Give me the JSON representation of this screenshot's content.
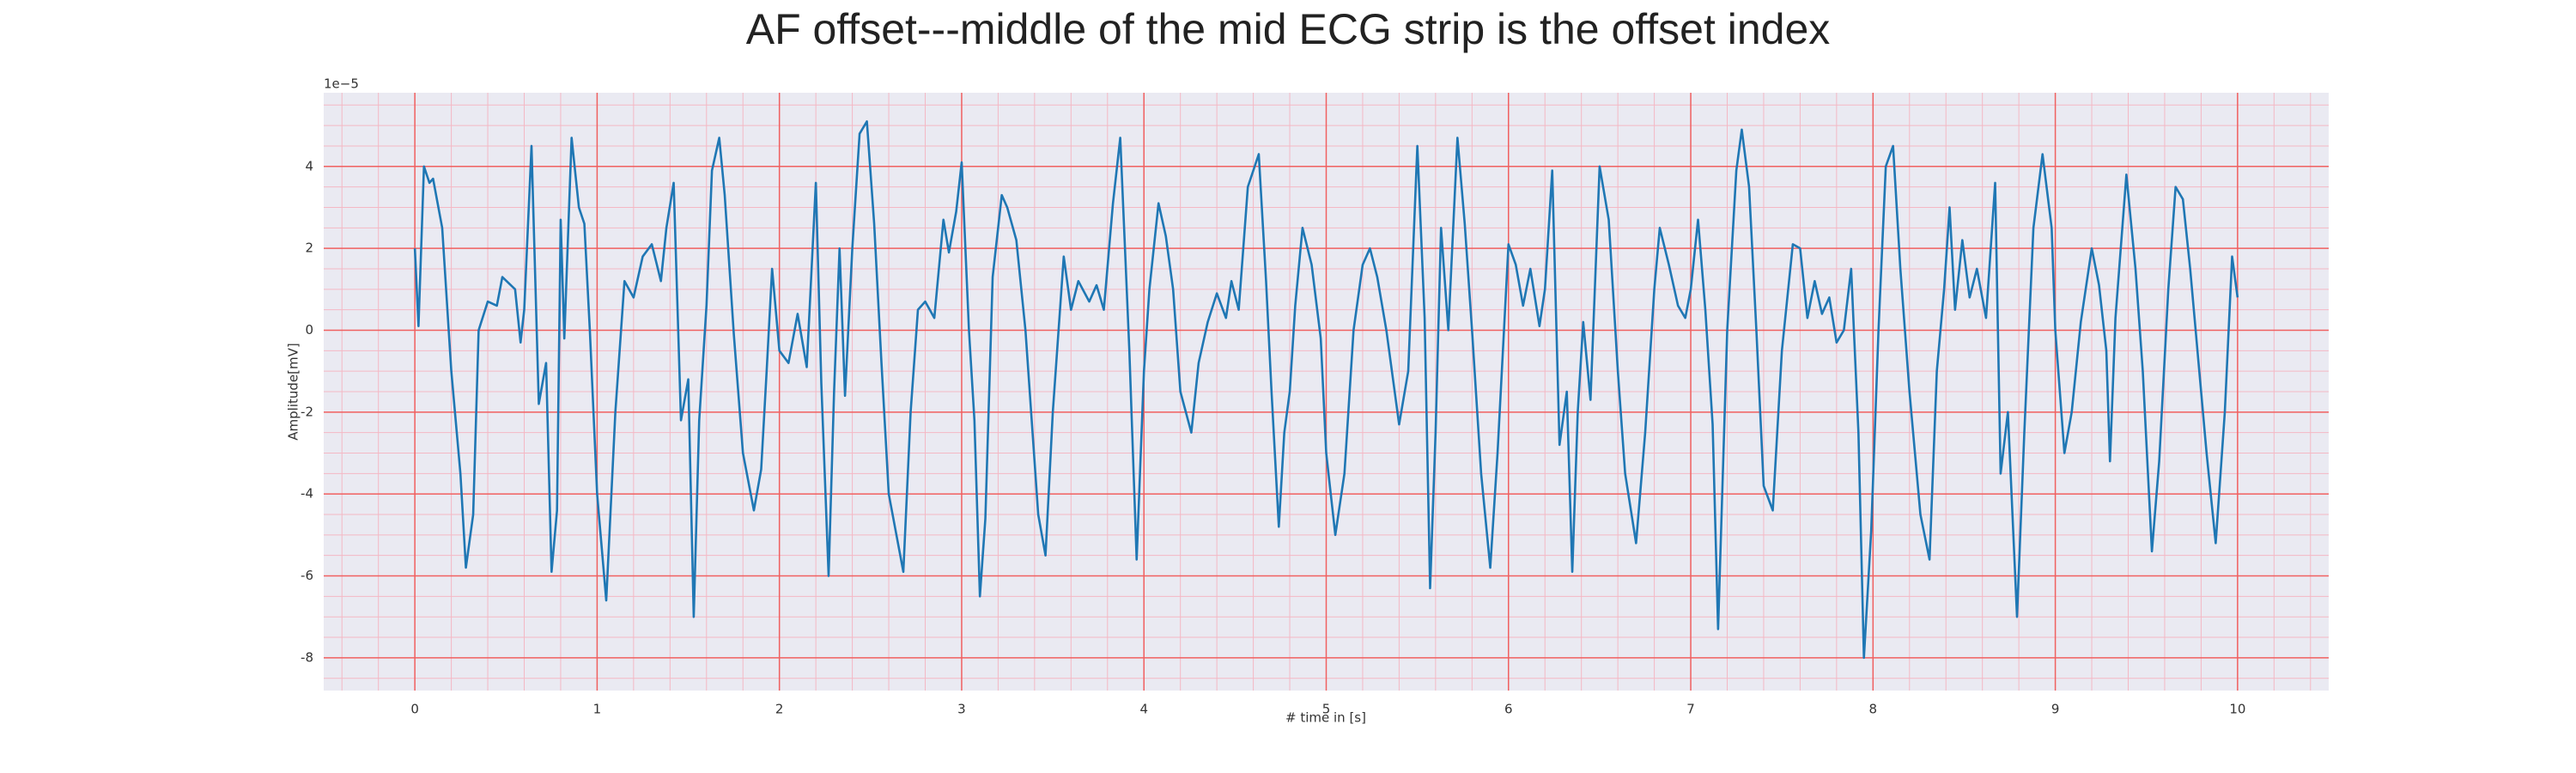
{
  "chart_data": {
    "type": "line",
    "title": "AF offset---middle of the mid ECG strip is the offset index",
    "xlabel": "# time in [s]",
    "ylabel": "Amplitude[mV]",
    "y_offset_label": "1e−5",
    "xlim": [
      -0.5,
      10.5
    ],
    "ylim": [
      -8.8,
      5.8
    ],
    "xticks": [
      0,
      1,
      2,
      3,
      4,
      5,
      6,
      7,
      8,
      9,
      10
    ],
    "yticks": [
      -8,
      -6,
      -4,
      -2,
      0,
      2,
      4
    ],
    "grid": true,
    "minor_grid": true,
    "series": [
      {
        "color": "#1f77b4",
        "x": [
          0,
          0.02,
          0.05,
          0.08,
          0.1,
          0.15,
          0.2,
          0.25,
          0.28,
          0.32,
          0.35,
          0.4,
          0.45,
          0.48,
          0.55,
          0.58,
          0.6,
          0.64,
          0.68,
          0.72,
          0.75,
          0.78,
          0.8,
          0.82,
          0.86,
          0.9,
          0.93,
          0.96,
          1.0,
          1.05,
          1.1,
          1.15,
          1.2,
          1.25,
          1.3,
          1.35,
          1.38,
          1.42,
          1.46,
          1.5,
          1.53,
          1.56,
          1.6,
          1.63,
          1.67,
          1.7,
          1.75,
          1.8,
          1.86,
          1.9,
          1.93,
          1.96,
          2.0,
          2.05,
          2.1,
          2.15,
          2.2,
          2.23,
          2.27,
          2.3,
          2.33,
          2.36,
          2.4,
          2.44,
          2.48,
          2.52,
          2.56,
          2.6,
          2.68,
          2.72,
          2.76,
          2.8,
          2.85,
          2.9,
          2.93,
          2.97,
          3.0,
          3.04,
          3.07,
          3.1,
          3.13,
          3.17,
          3.22,
          3.25,
          3.3,
          3.35,
          3.42,
          3.46,
          3.5,
          3.56,
          3.6,
          3.64,
          3.7,
          3.74,
          3.78,
          3.83,
          3.87,
          3.92,
          3.96,
          4.0,
          4.03,
          4.08,
          4.12,
          4.16,
          4.2,
          4.26,
          4.3,
          4.35,
          4.4,
          4.45,
          4.48,
          4.52,
          4.57,
          4.63,
          4.67,
          4.7,
          4.74,
          4.77,
          4.8,
          4.83,
          4.87,
          4.92,
          4.97,
          5.0,
          5.05,
          5.1,
          5.15,
          5.2,
          5.24,
          5.28,
          5.33,
          5.4,
          5.45,
          5.5,
          5.54,
          5.57,
          5.6,
          5.63,
          5.67,
          5.72,
          5.76,
          5.8,
          5.85,
          5.9,
          5.94,
          6.0,
          6.04,
          6.08,
          6.12,
          6.17,
          6.2,
          6.24,
          6.28,
          6.32,
          6.35,
          6.38,
          6.41,
          6.45,
          6.5,
          6.55,
          6.6,
          6.64,
          6.7,
          6.75,
          6.8,
          6.83,
          6.88,
          6.93,
          6.97,
          7.0,
          7.04,
          7.08,
          7.12,
          7.15,
          7.2,
          7.25,
          7.28,
          7.32,
          7.36,
          7.4,
          7.45,
          7.5,
          7.56,
          7.6,
          7.64,
          7.68,
          7.72,
          7.76,
          7.8,
          7.84,
          7.88,
          7.92,
          7.95,
          7.99,
          8.03,
          8.07,
          8.11,
          8.15,
          8.2,
          8.26,
          8.31,
          8.35,
          8.39,
          8.42,
          8.45,
          8.49,
          8.53,
          8.57,
          8.62,
          8.67,
          8.7,
          8.74,
          8.79,
          8.83,
          8.88,
          8.93,
          8.98,
          9.0,
          9.05,
          9.09,
          9.14,
          9.2,
          9.24,
          9.28,
          9.3,
          9.33,
          9.39,
          9.44,
          9.48,
          9.53,
          9.57,
          9.62,
          9.66,
          9.7,
          9.74,
          9.78,
          9.83,
          9.88,
          9.93,
          9.97,
          10.0
        ],
        "values": [
          2.0,
          0.1,
          4.0,
          3.6,
          3.7,
          2.5,
          -1,
          -3.5,
          -5.8,
          -4.5,
          0,
          0.7,
          0.6,
          1.3,
          1.0,
          -0.3,
          0.5,
          4.5,
          -1.8,
          -0.8,
          -5.9,
          -4.4,
          2.7,
          -0.2,
          4.7,
          3.0,
          2.6,
          0,
          -4,
          -6.6,
          -2,
          1.2,
          0.8,
          1.8,
          2.1,
          1.2,
          2.5,
          3.6,
          -2.2,
          -1.2,
          -7.0,
          -2.2,
          0.6,
          3.9,
          4.7,
          3.3,
          -0.1,
          -3,
          -4.4,
          -3.4,
          -1,
          1.5,
          -0.5,
          -0.8,
          0.4,
          -0.9,
          3.6,
          -1.3,
          -6.0,
          -1.5,
          2.0,
          -1.6,
          2.0,
          4.8,
          5.1,
          2.6,
          -0.8,
          -4,
          -5.9,
          -2,
          0.5,
          0.7,
          0.3,
          2.7,
          1.9,
          2.9,
          4.1,
          0,
          -2.2,
          -6.5,
          -4.6,
          1.3,
          3.3,
          3.0,
          2.2,
          0,
          -4.5,
          -5.5,
          -2,
          1.8,
          0.5,
          1.2,
          0.7,
          1.1,
          0.5,
          3.1,
          4.7,
          -0.5,
          -5.6,
          -1,
          1.0,
          3.1,
          2.3,
          1.0,
          -1.5,
          -2.5,
          -0.8,
          0.2,
          0.9,
          0.3,
          1.2,
          0.5,
          3.5,
          4.3,
          1.2,
          -1.5,
          -4.8,
          -2.5,
          -1.5,
          0.6,
          2.5,
          1.6,
          -0.2,
          -3,
          -5.0,
          -3.5,
          0,
          1.6,
          2.0,
          1.3,
          0,
          -2.3,
          -1,
          4.5,
          0.3,
          -6.3,
          -2.5,
          2.5,
          0,
          4.7,
          2.6,
          0,
          -3.5,
          -5.8,
          -3,
          2.1,
          1.6,
          0.6,
          1.5,
          0.1,
          1.0,
          3.9,
          -2.8,
          -1.5,
          -5.9,
          -2,
          0.2,
          -1.7,
          4.0,
          2.7,
          -1,
          -3.5,
          -5.2,
          -2.5,
          1.0,
          2.5,
          1.6,
          0.6,
          0.3,
          1,
          2.7,
          0.5,
          -2.3,
          -7.3,
          0,
          3.9,
          4.9,
          3.5,
          0,
          -3.8,
          -4.4,
          -0.5,
          2.1,
          2.0,
          0.3,
          1.2,
          0.4,
          0.8,
          -0.3,
          0,
          1.5,
          -2.5,
          -8.0,
          -4.9,
          0,
          4.0,
          4.5,
          1.5,
          -1.5,
          -4.5,
          -5.6,
          -1,
          1.0,
          3.0,
          0.5,
          2.2,
          0.8,
          1.5,
          0.3,
          3.6,
          -3.5,
          -2.0,
          -7.0,
          -2.5,
          2.5,
          4.3,
          2.5,
          0,
          -3,
          -2,
          0.2,
          2.0,
          1.1,
          -0.5,
          -3.2,
          0.3,
          3.8,
          1.5,
          -1,
          -5.4,
          -3.2,
          1.0,
          3.5,
          3.2,
          1.5,
          -0.5,
          -3,
          -5.2,
          -2,
          1.8,
          0.8
        ]
      }
    ]
  }
}
